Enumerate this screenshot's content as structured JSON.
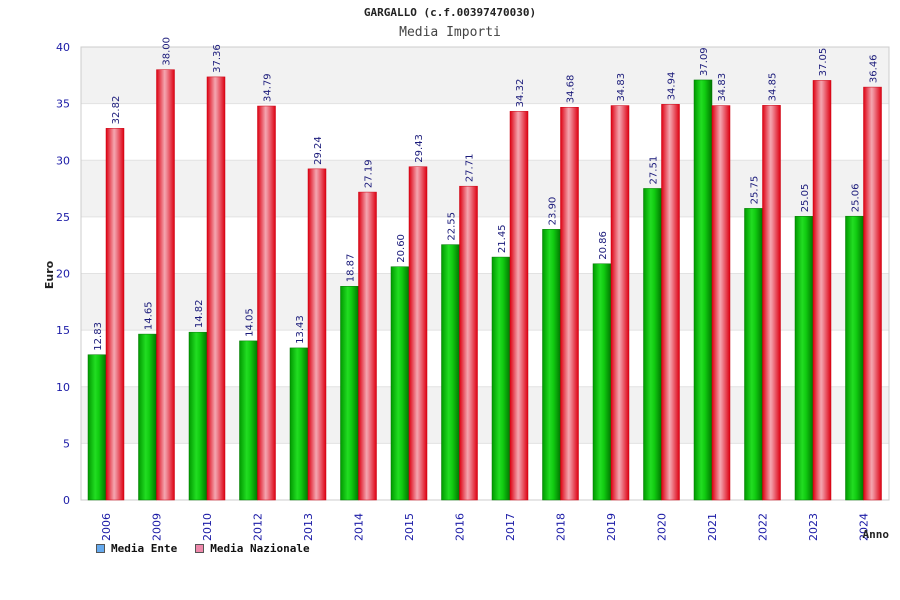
{
  "chart_data": {
    "type": "bar",
    "title": "GARGALLO (c.f.00397470030)",
    "subtitle": "Media Importi",
    "xlabel": "Anno",
    "ylabel": "Euro",
    "ylim": [
      0,
      40
    ],
    "yticks": [
      "0",
      "5",
      "10",
      "15",
      "20",
      "25",
      "30",
      "35",
      "40"
    ],
    "categories": [
      "2006",
      "2009",
      "2010",
      "2012",
      "2013",
      "2014",
      "2015",
      "2016",
      "2017",
      "2018",
      "2019",
      "2020",
      "2021",
      "2022",
      "2023",
      "2024"
    ],
    "series": [
      {
        "name": "Media Ente",
        "color": "#00aa00",
        "values": [
          12.83,
          14.65,
          14.82,
          14.05,
          13.43,
          18.87,
          20.6,
          22.55,
          21.45,
          23.9,
          20.86,
          27.51,
          37.09,
          25.75,
          25.05,
          25.06
        ],
        "labels": [
          "12.83",
          "14.65",
          "14.82",
          "14.05",
          "13.43",
          "18.87",
          "20.60",
          "22.55",
          "21.45",
          "23.90",
          "20.86",
          "27.51",
          "37.09",
          "25.75",
          "25.05",
          "25.06"
        ]
      },
      {
        "name": "Media Nazionale",
        "color": "#ee1111",
        "values": [
          32.82,
          38.0,
          37.36,
          34.79,
          29.24,
          27.19,
          29.43,
          27.71,
          34.32,
          34.68,
          34.83,
          34.94,
          34.83,
          34.85,
          37.05,
          36.46
        ],
        "labels": [
          "32.82",
          "38.00",
          "37.36",
          "34.79",
          "29.24",
          "27.19",
          "29.43",
          "27.71",
          "34.32",
          "34.68",
          "34.83",
          "34.94",
          "34.83",
          "34.85",
          "37.05",
          "36.46"
        ]
      }
    ],
    "legend": [
      {
        "label": "Media Ente",
        "color": "#66aaee"
      },
      {
        "label": "Media Nazionale",
        "color": "#ee88aa"
      }
    ],
    "grid": true,
    "legend_position": "bottom-left"
  }
}
